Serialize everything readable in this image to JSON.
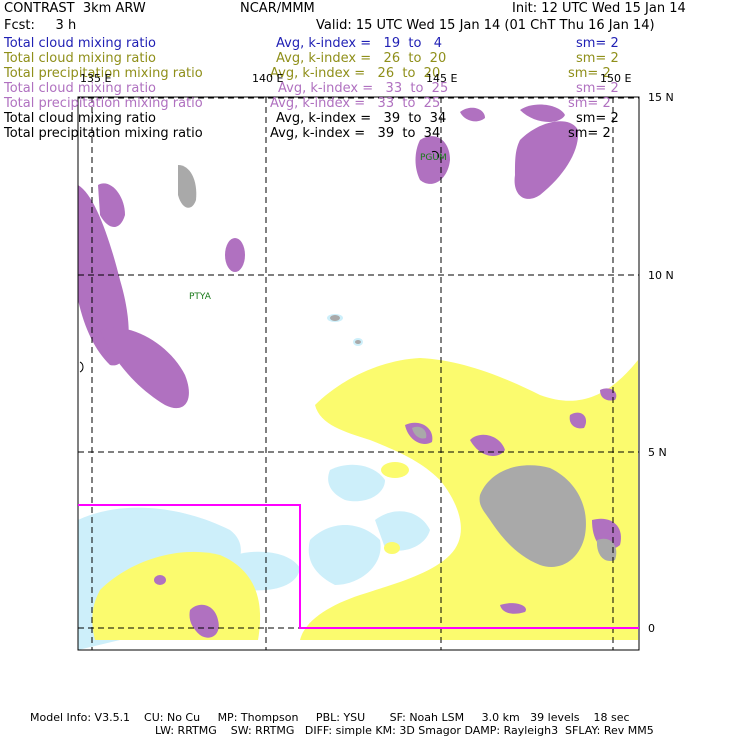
{
  "header": {
    "title": "CONTRAST  3km ARW",
    "org": "NCAR/MMM",
    "init": "Init: 12 UTC Wed 15 Jan 14",
    "fcst": "Fcst:     3 h",
    "valid": "Valid: 15 UTC Wed 15 Jan 14 (01 ChT Thu 16 Jan 14)"
  },
  "legend": [
    {
      "label": "Total cloud mixing ratio",
      "avg": "Avg, k-index =   19  to   4",
      "sm": "sm= 2",
      "color": "#1f1fb4"
    },
    {
      "label": "Total cloud mixing ratio",
      "avg": "Avg, k-index =   26  to  20",
      "sm": "sm= 2",
      "color": "#8f8f1a"
    },
    {
      "label": "Total precipitation mixing ratio",
      "avg": "Avg, k-index =   26  to  20",
      "sm": "sm= 2",
      "color": "#8f8f1a"
    },
    {
      "label": "Total cloud mixing ratio",
      "avg": "Avg, k-index =   33  to  25",
      "sm": "sm= 2",
      "color": "#b071c0"
    },
    {
      "label": "Total precipitation mixing ratio",
      "avg": "Avg, k-index =   33  to  25",
      "sm": "sm= 2",
      "color": "#b071c0"
    },
    {
      "label": "Total cloud mixing ratio",
      "avg": "Avg, k-index =   39  to  34",
      "sm": "sm= 2",
      "color": "#000000"
    },
    {
      "label": "Total precipitation mixing ratio",
      "avg": "Avg, k-index =   39  to  34",
      "sm": "sm= 2",
      "color": "#000000"
    }
  ],
  "map": {
    "lon_labels": [
      "135 E",
      "140 E",
      "145 E",
      "150 E"
    ],
    "lat_labels": [
      "15 N",
      "10 N",
      "5 N",
      "0"
    ],
    "stations": [
      "PGUM",
      "PTYA"
    ],
    "colors": {
      "cyan": "#cdeffa",
      "yellow": "#fbfb6e",
      "purple": "#b071c0",
      "gray": "#a9a9a9",
      "box": "#ff00ff"
    }
  },
  "footer": {
    "line1": "Model Info: V3.5.1    CU: No Cu     MP: Thompson     PBL: YSU       SF: Noah LSM     3.0 km   39 levels    18 sec",
    "line2": "LW: RRTMG    SW: RRTMG   DIFF: simple KM: 3D Smagor DAMP: Rayleigh3  SFLAY: Rev MM5"
  }
}
